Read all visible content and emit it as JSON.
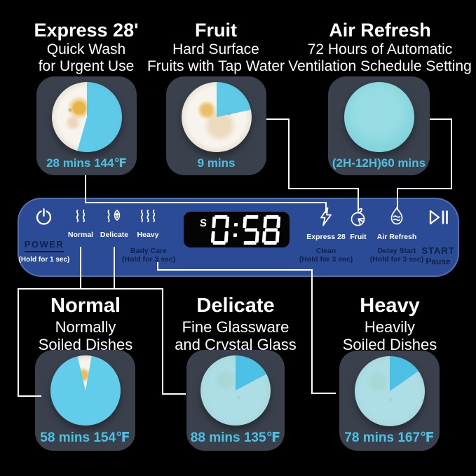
{
  "colors": {
    "background": "#000000",
    "panel_blue": "#2b4b96",
    "panel_text_navy": "#0e2347",
    "display_bg": "#040404",
    "display_digits": "#ffffff",
    "accent_cyan": "#4cc1e4",
    "card_bg": "#3a414d",
    "plate_cyan": "#55c8e8",
    "connector_white": "#ffffff"
  },
  "top_cards": [
    {
      "title": "Express 28'",
      "subtitle_lines": [
        "Quick Wash",
        "for Urgent Use"
      ],
      "time": "28 mins 144℉"
    },
    {
      "title": "Fruit",
      "subtitle_lines": [
        "Hard Surface",
        "Fruits with Tap Water"
      ],
      "time": "9 mins"
    },
    {
      "title": "Air Refresh",
      "subtitle_lines": [
        "72 Hours of Automatic",
        "Ventilation Schedule Setting"
      ],
      "time": "(2H-12H)60 mins"
    }
  ],
  "bottom_cards": [
    {
      "title": "Normal",
      "subtitle_lines": [
        "Normally",
        "Soiled Dishes"
      ],
      "time": "58 mins 154℉"
    },
    {
      "title": "Delicate",
      "subtitle_lines": [
        "Fine Glassware",
        "and Crystal Glass"
      ],
      "time": "88 mins 135℉"
    },
    {
      "title": "Heavy",
      "subtitle_lines": [
        "Heavily",
        "Soiled Dishes"
      ],
      "time": "78 mins 167℉"
    }
  ],
  "panel": {
    "power": {
      "label": "POWER",
      "hold": "(Hold for 1 sec)"
    },
    "modes": [
      {
        "label": "Normal"
      },
      {
        "label": "Delicate"
      },
      {
        "label": "Heavy"
      }
    ],
    "body_care": {
      "label": "Bady Care",
      "hold": "(Hold for 3 sec)"
    },
    "display": {
      "indicator": "S",
      "value": "0:58"
    },
    "functions": [
      {
        "label": "Express 28"
      },
      {
        "label": "Fruit"
      },
      {
        "label": "Air Refresh"
      }
    ],
    "clean": {
      "label": "Clean",
      "hold": "(Hold for 3 sec)"
    },
    "delay_start": {
      "label": "Delay Start",
      "hold": "(Hold for 3 sec)"
    },
    "start": {
      "label": "START",
      "sub": "Pause"
    }
  }
}
